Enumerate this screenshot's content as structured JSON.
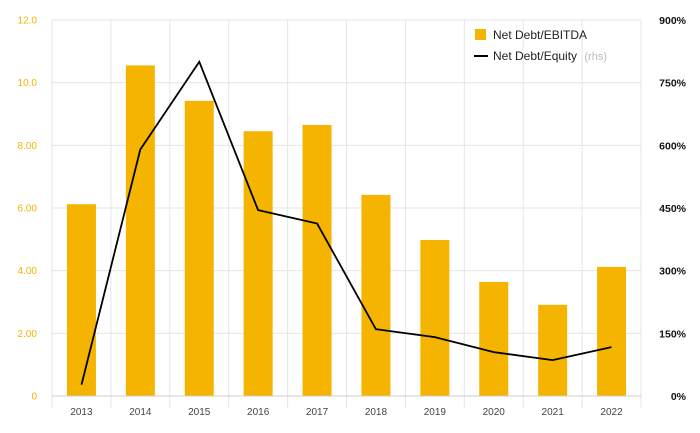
{
  "chart_data": {
    "type": "bar",
    "categories": [
      "2013",
      "2014",
      "2015",
      "2016",
      "2017",
      "2018",
      "2019",
      "2020",
      "2021",
      "2022"
    ],
    "series": [
      {
        "name": "Net Debt/EBITDA",
        "type": "bar",
        "axis": "left",
        "color": "#f5b400",
        "values": [
          6.12,
          10.55,
          9.42,
          8.45,
          8.65,
          6.42,
          4.98,
          3.64,
          2.91,
          4.12
        ]
      },
      {
        "name": "Net Debt/Equity",
        "type": "line",
        "axis": "right",
        "color": "#000000",
        "values": [
          27,
          590,
          800,
          445,
          413,
          160,
          141,
          105,
          86,
          117
        ]
      }
    ],
    "left_axis": {
      "ylim": [
        0,
        12
      ],
      "ticks": [
        0,
        2,
        4,
        6,
        8,
        10,
        12
      ],
      "tick_labels": [
        "0",
        "2.00",
        "4.00",
        "6.00",
        "8.00",
        "10.0",
        "12.0"
      ]
    },
    "right_axis": {
      "ylim": [
        0,
        900
      ],
      "ticks": [
        0,
        150,
        300,
        450,
        600,
        750,
        900
      ],
      "tick_labels": [
        "0%",
        "150%",
        "300%",
        "450%",
        "600%",
        "750%",
        "900%"
      ]
    },
    "legend": {
      "position": "top-right",
      "entries": [
        {
          "label": "Net Debt/EBITDA",
          "note": ""
        },
        {
          "label": "Net Debt/Equity",
          "note": "(rhs)"
        }
      ]
    },
    "grid": true
  }
}
